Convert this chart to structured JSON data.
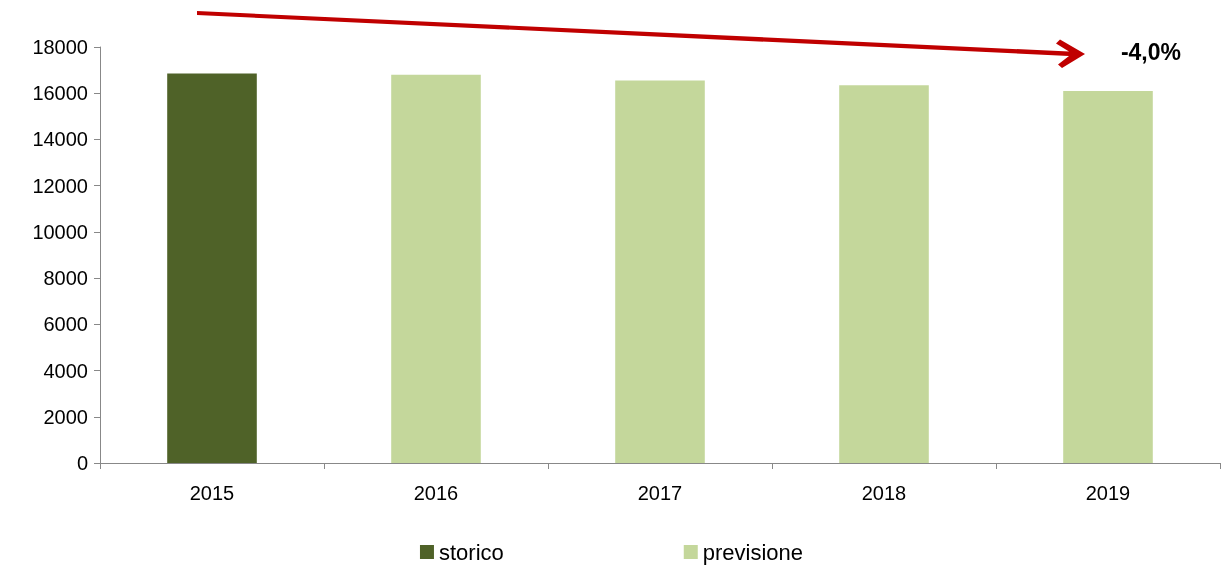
{
  "chart_data": {
    "type": "bar",
    "categories": [
      "2015",
      "2016",
      "2017",
      "2018",
      "2019"
    ],
    "stacked": true,
    "series": [
      {
        "name": "storico",
        "color": "#4f6228",
        "values": [
          16850,
          null,
          null,
          null,
          null
        ]
      },
      {
        "name": "previsione",
        "color": "#c4d79b",
        "values": [
          null,
          16800,
          16550,
          16350,
          16100
        ]
      }
    ],
    "ylim": [
      0,
      18000
    ],
    "yticks": [
      0,
      2000,
      4000,
      6000,
      8000,
      10000,
      12000,
      14000,
      16000,
      18000
    ],
    "grid": false,
    "legend": "bottom",
    "annotations": [
      "-4,0%"
    ]
  }
}
